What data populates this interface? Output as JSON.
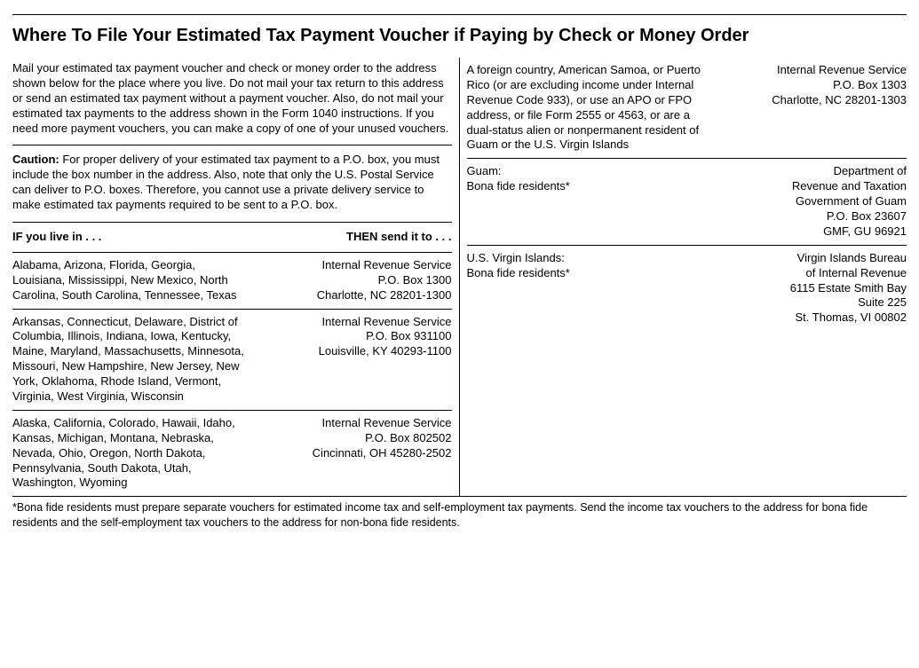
{
  "title": "Where To File Your Estimated Tax Payment Voucher if Paying by Check or Money Order",
  "intro": "Mail your estimated tax payment voucher and check or money order to the address shown below for the place where you live. Do not mail your tax return to this address or send an estimated tax payment without a payment voucher. Also, do not mail your estimated tax payments to the address shown in the Form 1040 instructions. If you need more payment vouchers, you can make a copy of one of your unused vouchers.",
  "caution_label": "Caution:",
  "caution_text": " For proper delivery of your estimated tax payment to a P.O. box, you must include the box number in the address. Also, note that only the U.S. Postal Service can deliver to P.O. boxes. Therefore, you cannot use a private delivery service to make estimated tax payments required to be sent to a P.O. box.",
  "if_header": "IF you live in . . .",
  "then_header": "THEN send it to . . .",
  "left_rows": [
    {
      "states": "Alabama, Arizona, Florida, Georgia, Louisiana, Mississippi, New Mexico, North Carolina, South Carolina, Tennessee, Texas",
      "addr1": "Internal Revenue Service",
      "addr2": "P.O. Box 1300",
      "addr3": "Charlotte, NC 28201-1300"
    },
    {
      "states": "Arkansas, Connecticut, Delaware, District of Columbia, Illinois, Indiana, Iowa, Kentucky, Maine, Maryland, Massachusetts, Minnesota, Missouri, New Hampshire, New Jersey, New York, Oklahoma, Rhode Island, Vermont, Virginia, West Virginia, Wisconsin",
      "addr1": "Internal Revenue Service",
      "addr2": "P.O. Box 931100",
      "addr3": "Louisville, KY 40293-1100"
    },
    {
      "states": "Alaska, California, Colorado, Hawaii, Idaho, Kansas, Michigan, Montana, Nebraska, Nevada, Ohio, Oregon, North Dakota, Pennsylvania, South Dakota, Utah, Washington, Wyoming",
      "addr1": "Internal Revenue Service",
      "addr2": "P.O. Box 802502",
      "addr3": "Cincinnati, OH 45280-2502"
    }
  ],
  "right_rows": [
    {
      "left": "A foreign country, American Samoa, or Puerto Rico (or are excluding income under Internal Revenue Code 933), or use an APO or FPO address, or file Form 2555 or 4563, or are a dual-status alien or nonpermanent resident of Guam or the U.S. Virgin Islands",
      "addr1": "Internal Revenue Service",
      "addr2": "P.O. Box 1303",
      "addr3": "Charlotte, NC 28201-1303",
      "addr4": "",
      "addr5": ""
    },
    {
      "left": "Guam:\nBona fide residents*",
      "addr1": "Department of",
      "addr2": "Revenue and Taxation",
      "addr3": "Government of Guam",
      "addr4": "P.O. Box 23607",
      "addr5": "GMF, GU 96921"
    },
    {
      "left": "U.S. Virgin Islands:\nBona fide residents*",
      "addr1": "Virgin Islands Bureau",
      "addr2": "of Internal Revenue",
      "addr3": "6115 Estate Smith Bay",
      "addr4": "Suite 225",
      "addr5": "St. Thomas, VI 00802"
    }
  ],
  "footnote": "*Bona fide residents must prepare separate vouchers for estimated income tax and self-employment tax payments. Send the income tax vouchers to the address for bona fide residents and the self-employment tax vouchers to the address for non-bona fide residents."
}
